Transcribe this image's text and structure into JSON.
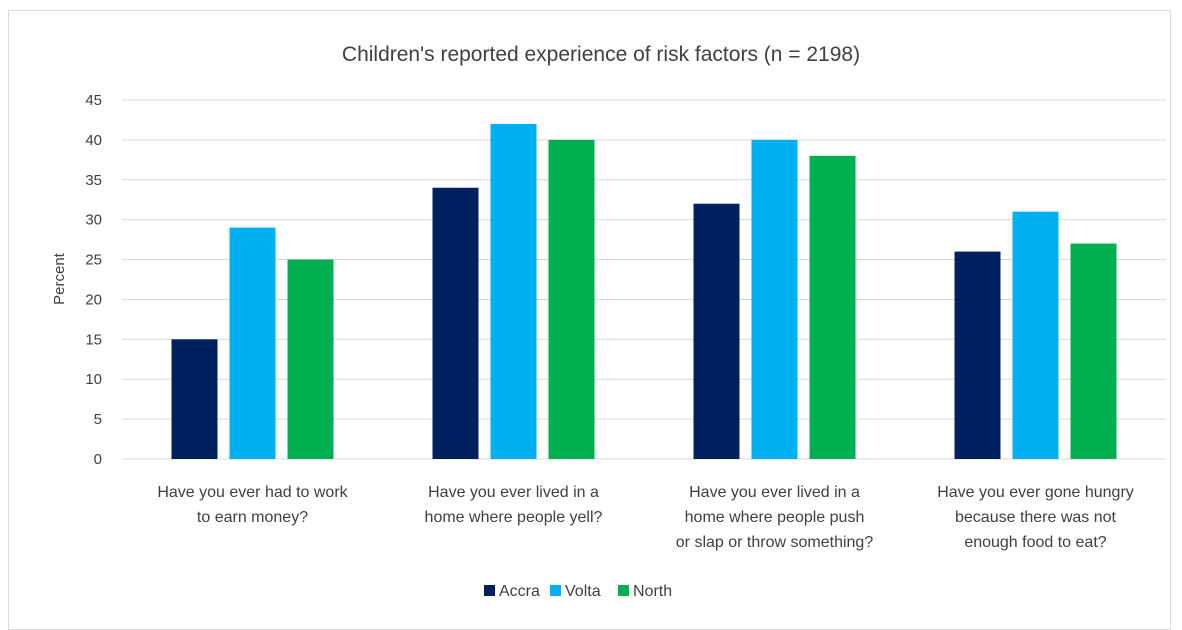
{
  "chart_data": {
    "type": "bar",
    "title": "Children's reported experience of risk factors (n = 2198)",
    "xlabel": "",
    "ylabel": "Percent",
    "ylim": [
      0,
      45
    ],
    "yticks": [
      0,
      5,
      10,
      15,
      20,
      25,
      30,
      35,
      40,
      45
    ],
    "grid": true,
    "legend_position": "bottom",
    "categories": [
      [
        "Have you ever had to work",
        "to earn money?"
      ],
      [
        "Have you ever lived in a",
        "home where people yell?"
      ],
      [
        "Have you ever lived in a",
        "home where people push",
        "or slap or throw something?"
      ],
      [
        "Have you ever gone hungry",
        "because there was not",
        "enough food to eat?"
      ]
    ],
    "series": [
      {
        "name": "Accra",
        "color": "#002060",
        "values": [
          15,
          34,
          32,
          26
        ]
      },
      {
        "name": "Volta",
        "color": "#00b0f0",
        "values": [
          29,
          42,
          40,
          31
        ]
      },
      {
        "name": "North",
        "color": "#00b050",
        "values": [
          25,
          40,
          38,
          27
        ]
      }
    ]
  }
}
